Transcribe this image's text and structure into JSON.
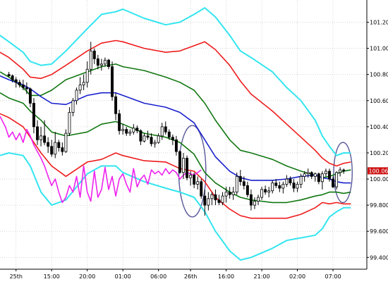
{
  "chart_data": {
    "type": "candlestick",
    "symbol_price_tag": "100.063",
    "y_axis": {
      "ticks": [
        101.2,
        101.0,
        100.8,
        100.6,
        100.4,
        100.2,
        100.0,
        99.8,
        99.6,
        99.4
      ],
      "tick_labels": [
        "101.200",
        "101.000",
        "100.800",
        "100.600",
        "100.400",
        "100.200",
        "100.000",
        "99.800",
        "99.600",
        "99.400"
      ],
      "range": [
        99.31,
        101.37
      ]
    },
    "x_axis": {
      "tick_labels": [
        "25th",
        "15:00",
        "20:00",
        "01:00",
        "06:00",
        "26th",
        "16:00",
        "21:00",
        "02:00",
        "07:00"
      ],
      "tick_positions": [
        2,
        12,
        22,
        32,
        42,
        51,
        61,
        71,
        81,
        91
      ],
      "range": [
        -2.5,
        100.5
      ]
    },
    "grid": true,
    "colors": {
      "background": "#ffffff",
      "up_candle": "#ffffff",
      "down_candle": "#000000",
      "candle_outline": "#000000",
      "bb_3sigma": "#33e5f0",
      "bb_2sigma": "#ee1c1c",
      "bb_1sigma": "#117711",
      "mid_line": "#1a22cc",
      "lagging_span": "#ee22ee",
      "highlight_ellipse": "#5a5a9a",
      "price_tag_bg": "#cc1111"
    },
    "candles": [
      [
        100.8,
        100.82,
        100.78,
        100.79
      ],
      [
        100.79,
        100.8,
        100.74,
        100.76
      ],
      [
        100.76,
        100.78,
        100.7,
        100.74
      ],
      [
        100.74,
        100.76,
        100.7,
        100.72
      ],
      [
        100.72,
        100.76,
        100.68,
        100.7
      ],
      [
        100.7,
        100.74,
        100.65,
        100.69
      ],
      [
        100.69,
        100.7,
        100.55,
        100.58
      ],
      [
        100.58,
        100.62,
        100.35,
        100.4
      ],
      [
        100.4,
        100.45,
        100.26,
        100.3
      ],
      [
        100.3,
        100.4,
        100.25,
        100.33
      ],
      [
        100.33,
        100.45,
        100.26,
        100.28
      ],
      [
        100.28,
        100.32,
        100.2,
        100.25
      ],
      [
        100.25,
        100.3,
        100.17,
        100.19
      ],
      [
        100.19,
        100.36,
        100.16,
        100.28
      ],
      [
        100.28,
        100.3,
        100.21,
        100.24
      ],
      [
        100.24,
        100.28,
        100.18,
        100.21
      ],
      [
        100.21,
        100.38,
        100.2,
        100.35
      ],
      [
        100.35,
        100.55,
        100.33,
        100.51
      ],
      [
        100.51,
        100.62,
        100.48,
        100.6
      ],
      [
        100.6,
        100.7,
        100.57,
        100.68
      ],
      [
        100.68,
        100.78,
        100.65,
        100.72
      ],
      [
        100.72,
        100.8,
        100.68,
        100.74
      ],
      [
        100.74,
        100.9,
        100.7,
        100.84
      ],
      [
        100.84,
        101.05,
        100.8,
        100.98
      ],
      [
        100.98,
        101.0,
        100.88,
        100.92
      ],
      [
        100.92,
        100.95,
        100.84,
        100.87
      ],
      [
        100.87,
        100.92,
        100.83,
        100.88
      ],
      [
        100.88,
        100.93,
        100.86,
        100.91
      ],
      [
        100.91,
        100.92,
        100.84,
        100.86
      ],
      [
        100.86,
        100.9,
        100.6,
        100.63
      ],
      [
        100.63,
        100.66,
        100.45,
        100.5
      ],
      [
        100.5,
        100.53,
        100.34,
        100.37
      ],
      [
        100.37,
        100.42,
        100.34,
        100.38
      ],
      [
        100.38,
        100.4,
        100.33,
        100.35
      ],
      [
        100.35,
        100.38,
        100.33,
        100.36
      ],
      [
        100.36,
        100.42,
        100.34,
        100.39
      ],
      [
        100.39,
        100.41,
        100.35,
        100.37
      ],
      [
        100.37,
        100.38,
        100.26,
        100.29
      ],
      [
        100.29,
        100.35,
        100.28,
        100.33
      ],
      [
        100.33,
        100.37,
        100.3,
        100.32
      ],
      [
        100.32,
        100.35,
        100.25,
        100.27
      ],
      [
        100.27,
        100.3,
        100.24,
        100.28
      ],
      [
        100.28,
        100.35,
        100.27,
        100.33
      ],
      [
        100.33,
        100.43,
        100.3,
        100.4
      ],
      [
        100.4,
        100.44,
        100.34,
        100.36
      ],
      [
        100.36,
        100.38,
        100.3,
        100.32
      ],
      [
        100.32,
        100.34,
        100.26,
        100.3
      ],
      [
        100.3,
        100.33,
        100.18,
        100.21
      ],
      [
        100.21,
        100.22,
        100.04,
        100.05
      ],
      [
        100.05,
        100.2,
        100.0,
        100.16
      ],
      [
        100.16,
        100.18,
        99.99,
        100.01
      ],
      [
        100.01,
        100.06,
        99.95,
        100.03
      ],
      [
        100.03,
        100.05,
        99.93,
        99.96
      ],
      [
        99.96,
        100.02,
        99.92,
        99.98
      ],
      [
        99.98,
        100.0,
        99.85,
        99.87
      ],
      [
        99.87,
        99.92,
        99.72,
        99.8
      ],
      [
        99.8,
        99.9,
        99.76,
        99.85
      ],
      [
        99.85,
        99.9,
        99.8,
        99.88
      ],
      [
        99.88,
        99.92,
        99.8,
        99.84
      ],
      [
        99.84,
        99.88,
        99.8,
        99.82
      ],
      [
        99.82,
        99.9,
        99.8,
        99.87
      ],
      [
        99.87,
        99.94,
        99.82,
        99.9
      ],
      [
        99.9,
        99.94,
        99.85,
        99.88
      ],
      [
        99.88,
        99.94,
        99.84,
        99.9
      ],
      [
        99.9,
        100.05,
        99.88,
        100.02
      ],
      [
        100.02,
        100.07,
        99.95,
        99.98
      ],
      [
        99.98,
        100.02,
        99.92,
        99.95
      ],
      [
        99.95,
        99.98,
        99.86,
        99.88
      ],
      [
        99.88,
        99.92,
        99.76,
        99.8
      ],
      [
        99.8,
        99.86,
        99.77,
        99.83
      ],
      [
        99.83,
        99.88,
        99.8,
        99.86
      ],
      [
        99.86,
        99.94,
        99.84,
        99.92
      ],
      [
        99.92,
        99.95,
        99.88,
        99.9
      ],
      [
        99.9,
        99.94,
        99.86,
        99.91
      ],
      [
        99.91,
        99.99,
        99.89,
        99.97
      ],
      [
        99.97,
        100.0,
        99.93,
        99.95
      ],
      [
        99.95,
        99.98,
        99.9,
        99.93
      ],
      [
        99.93,
        99.98,
        99.89,
        99.96
      ],
      [
        99.96,
        100.03,
        99.94,
        100.0
      ],
      [
        100.0,
        100.02,
        99.95,
        99.97
      ],
      [
        99.97,
        100.0,
        99.9,
        99.93
      ],
      [
        99.93,
        99.98,
        99.9,
        99.96
      ],
      [
        99.96,
        100.04,
        99.93,
        100.02
      ],
      [
        100.02,
        100.06,
        99.98,
        100.04
      ],
      [
        100.04,
        100.08,
        100.01,
        100.05
      ],
      [
        100.05,
        100.06,
        100.0,
        100.02
      ],
      [
        100.02,
        100.05,
        99.98,
        100.04
      ],
      [
        100.04,
        100.05,
        99.96,
        99.98
      ],
      [
        99.98,
        100.06,
        99.92,
        100.04
      ],
      [
        100.04,
        100.08,
        100.02,
        100.06
      ],
      [
        100.06,
        100.08,
        99.98,
        100.0
      ],
      [
        100.0,
        100.02,
        99.93,
        99.94
      ],
      [
        99.94,
        100.06,
        99.92,
        100.05
      ],
      [
        100.05,
        100.09,
        100.02,
        100.07
      ],
      [
        100.07,
        100.08,
        100.04,
        100.063
      ]
    ],
    "series": [
      {
        "key": "bb_plus3",
        "x": [
          -2.5,
          0,
          4,
          6,
          9,
          12,
          16,
          22,
          26,
          30,
          32,
          38,
          44,
          48,
          52,
          55,
          58,
          62,
          65,
          68,
          74,
          78,
          82,
          86,
          88,
          90,
          92,
          94,
          96
        ],
        "values": [
          101.1,
          101.05,
          100.97,
          100.9,
          100.87,
          100.88,
          100.98,
          101.15,
          101.26,
          101.28,
          101.3,
          101.23,
          101.18,
          101.2,
          101.26,
          101.31,
          101.24,
          101.1,
          100.98,
          100.93,
          100.82,
          100.7,
          100.6,
          100.45,
          100.33,
          100.25,
          100.18,
          100.2,
          100.2
        ]
      },
      {
        "key": "bb_plus2",
        "x": [
          -2.5,
          0,
          4,
          6,
          9,
          12,
          16,
          22,
          26,
          30,
          32,
          38,
          44,
          48,
          52,
          55,
          58,
          62,
          65,
          68,
          74,
          78,
          82,
          86,
          88,
          90,
          92,
          94,
          96
        ],
        "values": [
          100.97,
          100.93,
          100.84,
          100.78,
          100.77,
          100.8,
          100.87,
          100.98,
          101.04,
          101.06,
          101.05,
          101.0,
          100.97,
          100.98,
          101.02,
          101.05,
          100.99,
          100.87,
          100.75,
          100.65,
          100.52,
          100.42,
          100.32,
          100.22,
          100.16,
          100.12,
          100.1,
          100.12,
          100.13
        ]
      },
      {
        "key": "bb_plus1",
        "x": [
          -2.5,
          0,
          4,
          6,
          9,
          12,
          16,
          22,
          26,
          30,
          32,
          38,
          44,
          48,
          52,
          55,
          58,
          62,
          65,
          68,
          74,
          78,
          82,
          86,
          88,
          90,
          92,
          94,
          96
        ],
        "values": [
          100.82,
          100.78,
          100.7,
          100.64,
          100.64,
          100.68,
          100.76,
          100.82,
          100.86,
          100.88,
          100.86,
          100.83,
          100.78,
          100.74,
          100.68,
          100.58,
          100.45,
          100.3,
          100.22,
          100.2,
          100.15,
          100.1,
          100.06,
          100.03,
          100.01,
          100.02,
          100.04,
          100.06,
          100.07
        ]
      },
      {
        "key": "mid",
        "x": [
          -2.5,
          0,
          4,
          6,
          9,
          12,
          16,
          22,
          26,
          30,
          32,
          38,
          44,
          48,
          52,
          55,
          58,
          62,
          65,
          68,
          74,
          78,
          82,
          86,
          88,
          90,
          92,
          94,
          96
        ],
        "values": [
          100.79,
          100.76,
          100.72,
          100.69,
          100.63,
          100.58,
          100.57,
          100.64,
          100.66,
          100.66,
          100.64,
          100.58,
          100.55,
          100.51,
          100.43,
          100.3,
          100.17,
          100.06,
          100.01,
          99.99,
          99.99,
          100.0,
          100.02,
          100.03,
          100.01,
          100.0,
          99.98,
          99.97,
          99.97
        ]
      },
      {
        "key": "bb_minus1",
        "x": [
          -2.5,
          0,
          4,
          6,
          9,
          12,
          16,
          22,
          26,
          30,
          32,
          38,
          44,
          48,
          52,
          55,
          58,
          62,
          65,
          68,
          74,
          78,
          82,
          86,
          88,
          90,
          92,
          94,
          96
        ],
        "values": [
          100.66,
          100.62,
          100.58,
          100.52,
          100.45,
          100.36,
          100.33,
          100.36,
          100.42,
          100.44,
          100.42,
          100.35,
          100.32,
          100.28,
          100.19,
          100.05,
          99.97,
          99.9,
          99.86,
          99.84,
          99.82,
          99.82,
          99.84,
          99.87,
          99.88,
          99.9,
          99.9,
          99.89,
          99.9
        ]
      },
      {
        "key": "bb_minus2",
        "x": [
          -2.5,
          0,
          4,
          6,
          9,
          12,
          16,
          22,
          26,
          30,
          32,
          38,
          44,
          48,
          52,
          55,
          58,
          62,
          65,
          68,
          74,
          78,
          82,
          86,
          88,
          90,
          92,
          94,
          96
        ],
        "values": [
          100.5,
          100.47,
          100.4,
          100.32,
          100.2,
          100.1,
          100.02,
          100.13,
          100.15,
          100.2,
          100.18,
          100.14,
          100.13,
          100.08,
          100.06,
          99.98,
          99.86,
          99.77,
          99.72,
          99.7,
          99.7,
          99.7,
          99.73,
          99.78,
          99.82,
          99.81,
          99.82,
          99.81,
          99.81
        ]
      },
      {
        "key": "bb_minus3",
        "x": [
          -2.5,
          0,
          4,
          6,
          9,
          12,
          16,
          22,
          26,
          30,
          32,
          38,
          44,
          48,
          52,
          55,
          58,
          62,
          65,
          68,
          74,
          78,
          82,
          86,
          88,
          90,
          92,
          94,
          96
        ],
        "values": [
          100.18,
          100.2,
          100.18,
          100.1,
          99.9,
          99.8,
          99.84,
          100.04,
          100.1,
          100.1,
          100.05,
          99.98,
          99.93,
          99.9,
          99.86,
          99.75,
          99.6,
          99.45,
          99.38,
          99.4,
          99.47,
          99.53,
          99.55,
          99.57,
          99.62,
          99.71,
          99.75,
          99.78,
          99.78
        ]
      },
      {
        "key": "lagging_span",
        "x": [
          -2.5,
          -1,
          0,
          1,
          2,
          3,
          4,
          5,
          6,
          7,
          8,
          9,
          10,
          11,
          12,
          13,
          14,
          15,
          16,
          17,
          18,
          19,
          20,
          21,
          22,
          23,
          24,
          25,
          26,
          27,
          28,
          29,
          30,
          31,
          32,
          33,
          34,
          35,
          36,
          37,
          38,
          39,
          40,
          41,
          42,
          43,
          44,
          45,
          46,
          47,
          48,
          49,
          50,
          51,
          52,
          53,
          54
        ],
        "values": [
          100.48,
          100.4,
          100.32,
          100.36,
          100.3,
          100.35,
          100.28,
          100.38,
          100.33,
          100.26,
          100.21,
          100.16,
          100.1,
          100.02,
          99.95,
          100.0,
          99.9,
          99.82,
          99.86,
          99.95,
          99.9,
          100.02,
          99.86,
          100.1,
          99.9,
          99.83,
          100.06,
          99.86,
          99.92,
          100.09,
          99.92,
          100.02,
          99.87,
          100.0,
          100.04,
          99.96,
          99.9,
          100.08,
          99.94,
          100.0,
          100.03,
          99.96,
          100.07,
          100.04,
          100.06,
          100.03,
          100.08,
          100.04,
          100.07,
          100.05,
          100.0,
          100.03,
          100.05,
          100.04,
          100.03,
          100.05,
          100.07
        ]
      }
    ],
    "highlights": [
      {
        "cx": 51.5,
        "cy": 100.06,
        "rx": 3.8,
        "ry": 0.35
      },
      {
        "cx": 93.8,
        "cy": 100.05,
        "rx": 2.6,
        "ry": 0.23
      }
    ]
  }
}
